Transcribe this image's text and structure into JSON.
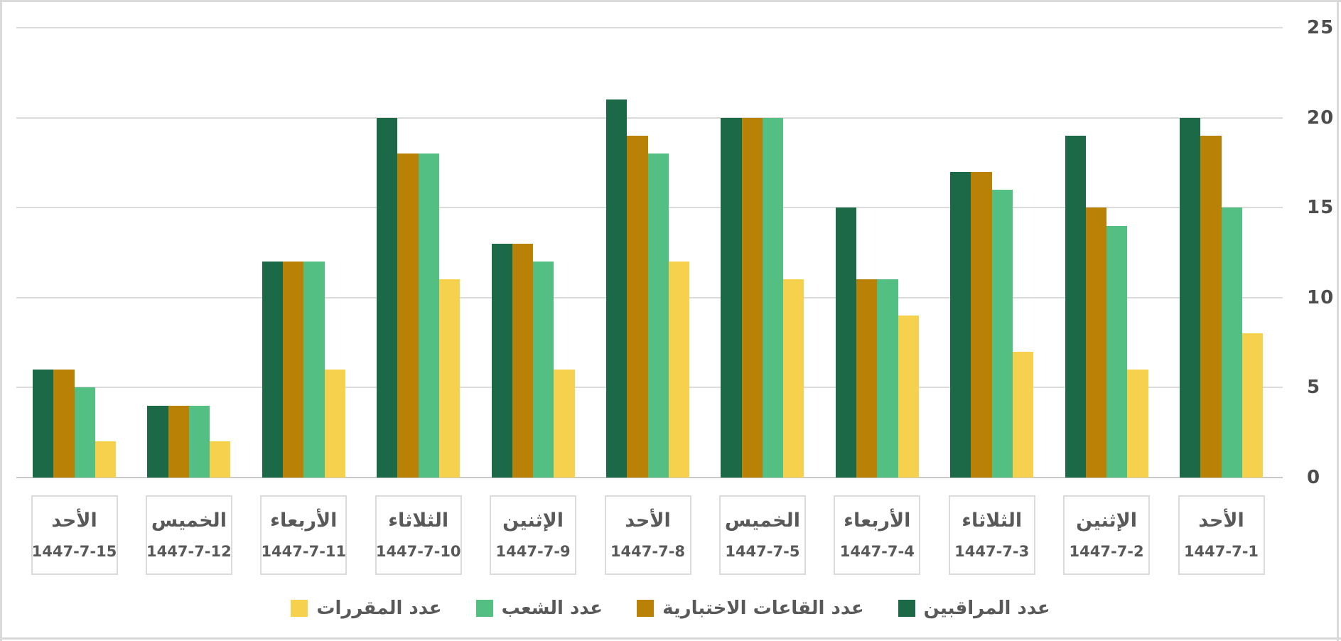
{
  "chart_data": {
    "type": "bar",
    "title": "",
    "orientation": "vertical-grouped",
    "direction": "rtl",
    "note": "Chronological order runs right-to-left; categories listed here in on-screen left-to-right order",
    "categories": [
      {
        "day": "الأحد",
        "date": "1447-7-15"
      },
      {
        "day": "الخميس",
        "date": "1447-7-12"
      },
      {
        "day": "الأربعاء",
        "date": "1447-7-11"
      },
      {
        "day": "الثلاثاء",
        "date": "1447-7-10"
      },
      {
        "day": "الإثنين",
        "date": "1447-7-9"
      },
      {
        "day": "الأحد",
        "date": "1447-7-8"
      },
      {
        "day": "الخميس",
        "date": "1447-7-5"
      },
      {
        "day": "الأربعاء",
        "date": "1447-7-4"
      },
      {
        "day": "الثلاثاء",
        "date": "1447-7-3"
      },
      {
        "day": "الإثنين",
        "date": "1447-7-2"
      },
      {
        "day": "الأحد",
        "date": "1447-7-1"
      }
    ],
    "series": [
      {
        "name": "عدد المراقبين",
        "color": "#1B6947",
        "values": [
          6,
          4,
          12,
          20,
          13,
          21,
          20,
          15,
          17,
          19,
          20
        ]
      },
      {
        "name": "عدد القاعات الاختبارية",
        "color": "#B98206",
        "values": [
          6,
          4,
          12,
          18,
          13,
          19,
          20,
          11,
          17,
          15,
          19
        ]
      },
      {
        "name": "عدد الشعب",
        "color": "#53BF82",
        "values": [
          5,
          4,
          12,
          18,
          12,
          18,
          20,
          11,
          16,
          14,
          15
        ]
      },
      {
        "name": "عدد المقررات",
        "color": "#F5D14D",
        "values": [
          2,
          2,
          6,
          11,
          6,
          12,
          11,
          9,
          7,
          6,
          8
        ]
      }
    ],
    "y_axis": {
      "ticks": [
        0,
        5,
        10,
        15,
        20,
        25
      ],
      "min": 0,
      "max": 25,
      "position": "right"
    },
    "grid": true,
    "legend_position": "bottom",
    "legend_display_order": "reversed"
  },
  "colors": {
    "background": "#FFFFFF",
    "gridline": "#DBDBDB",
    "zero_line": "#C9C9C9",
    "window_border": "#D9D9D9",
    "label_text": "#595959",
    "tick_text": "#4D4D4D",
    "category_box_border": "#DBDBDB"
  }
}
